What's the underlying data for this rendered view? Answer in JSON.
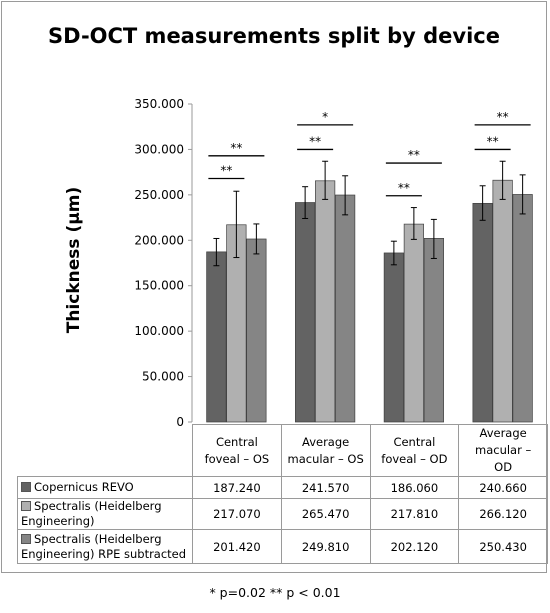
{
  "chart_data": {
    "type": "bar",
    "title": "SD-OCT measurements split by device",
    "ylabel": "Thickness (µm)",
    "xlabel": "",
    "ylim": [
      0,
      350
    ],
    "ytick_values": [
      0,
      50,
      100,
      150,
      200,
      250,
      300,
      350
    ],
    "ytick_labels": [
      "0",
      "50.000",
      "100.000",
      "150.000",
      "200.000",
      "250.000",
      "300.000",
      "350.000"
    ],
    "categories": [
      "Central foveal – OS",
      "Average macular – OS",
      "Central foveal – OD",
      "Average macular – OD"
    ],
    "category_labels": [
      [
        "Central",
        "foveal – OS"
      ],
      [
        "Average",
        "macular – OS"
      ],
      [
        "Central",
        "foveal – OD"
      ],
      [
        "Average",
        "macular –",
        "OD"
      ]
    ],
    "series": [
      {
        "name": "Copernicus REVO",
        "legend_lines": [
          "Copernicus REVO"
        ],
        "color": "#636363",
        "values": [
          187.24,
          241.57,
          186.06,
          240.66
        ],
        "value_labels": [
          "187.240",
          "241.570",
          "186.060",
          "240.660"
        ],
        "err_low": [
          172,
          224,
          173,
          222
        ],
        "err_high": [
          202,
          259,
          199,
          260
        ]
      },
      {
        "name": "Spectralis (Heidelberg Engineering)",
        "legend_lines": [
          "Spectralis (Heidelberg",
          "Engineering)"
        ],
        "color": "#b0b0b0",
        "values": [
          217.07,
          265.47,
          217.81,
          266.12
        ],
        "value_labels": [
          "217.070",
          "265.470",
          "217.810",
          "266.120"
        ],
        "err_low": [
          181,
          245,
          201,
          245
        ],
        "err_high": [
          254,
          287,
          236,
          287
        ]
      },
      {
        "name": "Spectralis (Heidelberg Engineering) RPE subtracted",
        "legend_lines": [
          "Spectralis (Heidelberg",
          "Engineering)  RPE subtracted"
        ],
        "color": "#858585",
        "values": [
          201.42,
          249.81,
          202.12,
          250.43
        ],
        "value_labels": [
          "201.420",
          "249.810",
          "202.120",
          "250.430"
        ],
        "err_low": [
          185,
          228,
          180,
          229
        ],
        "err_high": [
          218,
          271,
          223,
          272
        ]
      }
    ],
    "significance": [
      {
        "category": 0,
        "from": 0,
        "to": 1,
        "y": 268,
        "label": "**"
      },
      {
        "category": 0,
        "from": 0,
        "to": 2,
        "y": 293,
        "label": "**"
      },
      {
        "category": 1,
        "from": 0,
        "to": 1,
        "y": 300,
        "label": "**"
      },
      {
        "category": 1,
        "from": 0,
        "to": 2,
        "y": 327,
        "label": "*"
      },
      {
        "category": 2,
        "from": 0,
        "to": 1,
        "y": 249,
        "label": "**"
      },
      {
        "category": 2,
        "from": 0,
        "to": 2,
        "y": 285,
        "label": "**"
      },
      {
        "category": 3,
        "from": 0,
        "to": 1,
        "y": 300,
        "label": "**"
      },
      {
        "category": 3,
        "from": 0,
        "to": 2,
        "y": 327,
        "label": "**"
      }
    ],
    "grid": false,
    "legend": "in data table"
  },
  "footnote": "* p=0.02 ** p < 0.01"
}
